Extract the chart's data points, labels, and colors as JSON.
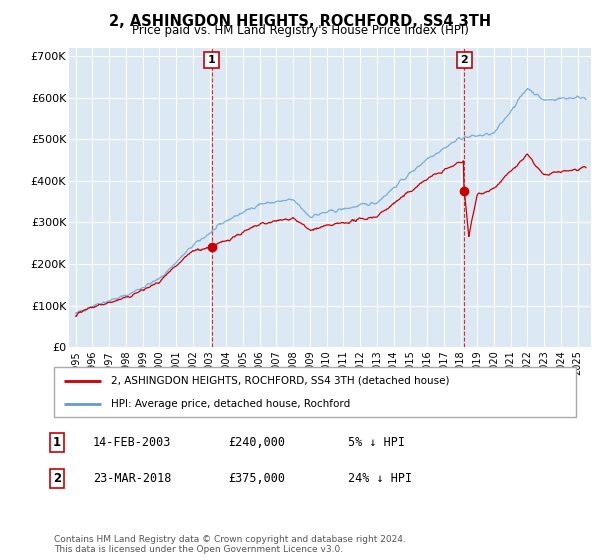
{
  "title": "2, ASHINGDON HEIGHTS, ROCHFORD, SS4 3TH",
  "subtitle": "Price paid vs. HM Land Registry's House Price Index (HPI)",
  "plot_bg_color": "#dce9f5",
  "ylabel_ticks": [
    "£0",
    "£100K",
    "£200K",
    "£300K",
    "£400K",
    "£500K",
    "£600K",
    "£700K"
  ],
  "ytick_vals": [
    0,
    100000,
    200000,
    300000,
    400000,
    500000,
    600000,
    700000
  ],
  "ylim": [
    0,
    720000
  ],
  "xlim_start": 1994.6,
  "xlim_end": 2025.8,
  "xtick_years": [
    1995,
    1996,
    1997,
    1998,
    1999,
    2000,
    2001,
    2002,
    2003,
    2004,
    2005,
    2006,
    2007,
    2008,
    2009,
    2010,
    2011,
    2012,
    2013,
    2014,
    2015,
    2016,
    2017,
    2018,
    2019,
    2020,
    2021,
    2022,
    2023,
    2024,
    2025
  ],
  "legend_line1": "2, ASHINGDON HEIGHTS, ROCHFORD, SS4 3TH (detached house)",
  "legend_line2": "HPI: Average price, detached house, Rochford",
  "legend_color1": "#cc0000",
  "legend_color2": "#6699cc",
  "sale1_label": "1",
  "sale1_date": "14-FEB-2003",
  "sale1_price": "£240,000",
  "sale1_hpi": "5% ↓ HPI",
  "sale1_x": 2003.12,
  "sale1_y": 240000,
  "sale2_label": "2",
  "sale2_date": "23-MAR-2018",
  "sale2_price": "£375,000",
  "sale2_hpi": "24% ↓ HPI",
  "sale2_x": 2018.23,
  "sale2_y": 375000,
  "vline1_x": 2003.12,
  "vline2_x": 2018.23,
  "footer": "Contains HM Land Registry data © Crown copyright and database right 2024.\nThis data is licensed under the Open Government Licence v3.0.",
  "hpi_color": "#7aaed6",
  "price_color": "#cc0000"
}
